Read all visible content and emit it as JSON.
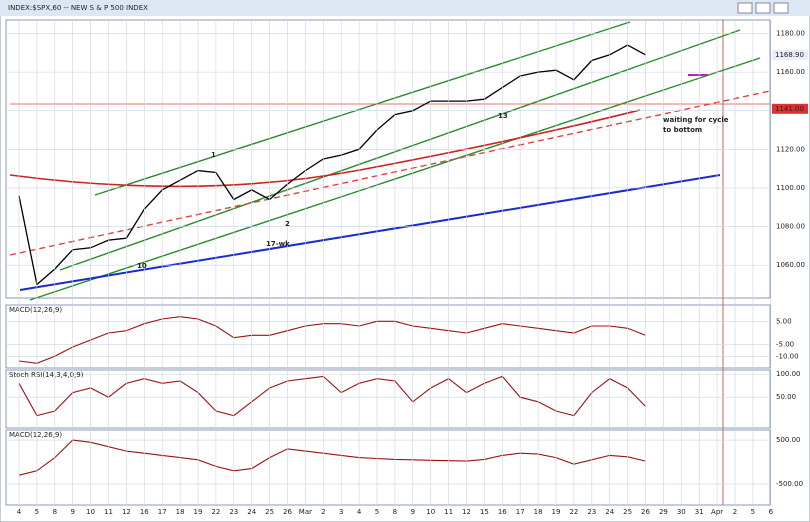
{
  "chart_data": [
    {
      "type": "line",
      "title": "INDEX:$SPX,60 -- NEW S & P 500 INDEX",
      "color": "#000000",
      "categories": [
        "4",
        "5",
        "8",
        "9",
        "10",
        "11",
        "12",
        "16",
        "17",
        "18",
        "19",
        "22",
        "23",
        "24",
        "25",
        "26",
        "Mar",
        "2",
        "3",
        "4",
        "5",
        "8",
        "9",
        "10",
        "11",
        "12",
        "15",
        "16",
        "17",
        "18",
        "19",
        "22",
        "23",
        "24",
        "25",
        "26",
        "29",
        "30",
        "31",
        "Apr",
        "2",
        "5",
        "6"
      ],
      "values": [
        1096,
        1050,
        1058,
        1068,
        1069,
        1073,
        1074,
        1089,
        1099,
        1104,
        1109,
        1108,
        1094,
        1099,
        1094,
        1102,
        1109,
        1115,
        1117,
        1120,
        1130,
        1138,
        1140,
        1145,
        1145,
        1145,
        1146,
        1152,
        1158,
        1160,
        1161,
        1156,
        1166,
        1169,
        1174,
        1169,
        null,
        null,
        null,
        null,
        null,
        null,
        null
      ],
      "ylim": [
        1043,
        1187
      ],
      "yticks": [
        {
          "value": 1060,
          "label": "1060.00"
        },
        {
          "value": 1080,
          "label": "1080.00"
        },
        {
          "value": 1100,
          "label": "1100.00"
        },
        {
          "value": 1120,
          "label": "1120.00"
        },
        {
          "value": 1140,
          "label": "1140.00"
        },
        {
          "value": 1160,
          "label": "1160.00"
        },
        {
          "value": 1180,
          "label": "1180.00"
        }
      ],
      "price_labels": [
        {
          "value": 1168.9,
          "label": "1168.90"
        },
        {
          "value": 1141,
          "label": "1141.00"
        }
      ],
      "annotations": [
        "waiting for cycle",
        "to bottom",
        "17-wk",
        "1",
        "2",
        "10",
        "13"
      ]
    },
    {
      "type": "line",
      "title": "MACD(12,26,9)",
      "color": "#a01010",
      "values": [
        -12,
        -13,
        -10,
        -6,
        -3,
        0,
        1,
        4,
        6,
        7,
        6,
        3,
        -2,
        -1,
        -1,
        1,
        3,
        4,
        4,
        3,
        5,
        5,
        3,
        2,
        1,
        0,
        2,
        4,
        3,
        2,
        1,
        0,
        3,
        3,
        2,
        -1,
        null,
        null,
        null,
        null,
        null,
        null,
        null
      ],
      "ylim": [
        -15,
        12
      ],
      "yticks": [
        {
          "value": 5,
          "label": "5.00"
        },
        {
          "value": -5,
          "label": "-5.00"
        },
        {
          "value": -10,
          "label": "-10.00"
        }
      ]
    },
    {
      "type": "line",
      "title": "Stoch RSI(14,3,4,0,9)",
      "color": "#a01010",
      "values": [
        80,
        10,
        20,
        60,
        70,
        50,
        80,
        90,
        80,
        85,
        60,
        20,
        10,
        40,
        70,
        85,
        90,
        95,
        60,
        80,
        90,
        85,
        40,
        70,
        90,
        60,
        80,
        95,
        50,
        40,
        20,
        10,
        60,
        90,
        70,
        30,
        null,
        null,
        null,
        null,
        null,
        null,
        null
      ],
      "ylim": [
        -17,
        109
      ],
      "yticks": [
        {
          "value": 100,
          "label": "100.00"
        },
        {
          "value": 50,
          "label": "50.00"
        }
      ]
    },
    {
      "type": "line",
      "title": "MACD(12,26,9)",
      "color": "#a01010",
      "values": [
        -300,
        -200,
        100,
        500,
        450,
        350,
        250,
        200,
        150,
        100,
        50,
        -100,
        -200,
        -150,
        100,
        300,
        250,
        200,
        150,
        100,
        80,
        60,
        50,
        40,
        30,
        20,
        60,
        150,
        200,
        180,
        100,
        -50,
        50,
        150,
        120,
        20,
        null,
        null,
        null,
        null,
        null,
        null,
        null
      ],
      "ylim": [
        -980,
        730
      ],
      "yticks": [
        {
          "value": 500,
          "label": "500.00"
        },
        {
          "value": -500,
          "label": "-500.00"
        }
      ]
    }
  ]
}
